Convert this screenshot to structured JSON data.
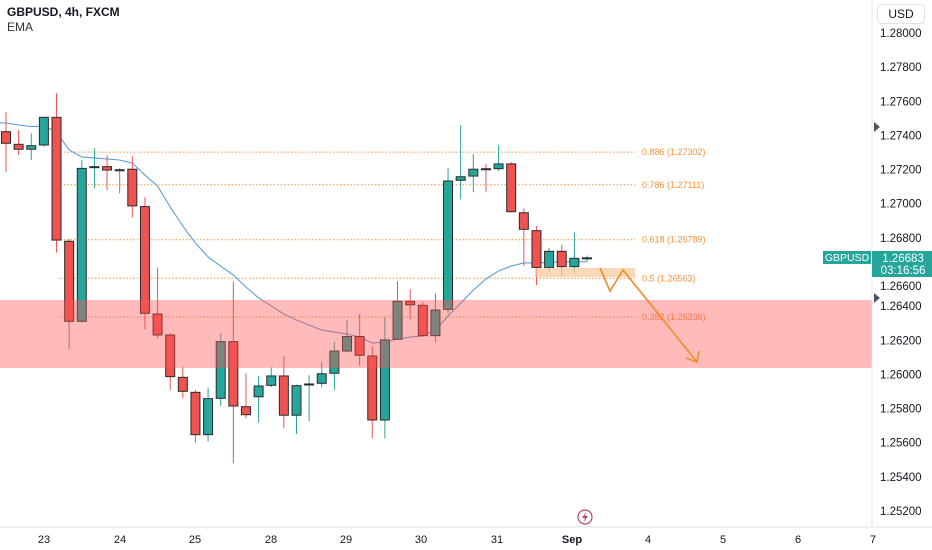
{
  "header": {
    "symbol": "GBPUSD, 4h, FXCM",
    "indicator": "EMA"
  },
  "currency_button": "USD",
  "colors": {
    "up": "#26a69a",
    "down": "#ef5350",
    "ema": "#5b9fd6",
    "fib": "#f7923a",
    "zone": "#ff5252",
    "projection": "#f08c28"
  },
  "chart_data": {
    "type": "candlestick",
    "symbol": "GBPUSD",
    "timeframe": "4h",
    "ylim": [
      1.251,
      1.2815
    ],
    "y_ticks": [
      "1.28000",
      "1.27800",
      "1.27600",
      "1.27400",
      "1.27200",
      "1.27000",
      "1.26800",
      "1.26600",
      "1.26400",
      "1.26200",
      "1.26000",
      "1.25800",
      "1.25600",
      "1.25400",
      "1.25200"
    ],
    "x_ticks": [
      "23",
      "24",
      "25",
      "28",
      "29",
      "30",
      "31",
      "Sep",
      "4",
      "5",
      "6",
      "7"
    ],
    "x_tick_bold": "Sep",
    "candles": [
      [
        1.27422,
        1.27537,
        1.27187,
        1.27354
      ],
      [
        1.27348,
        1.27432,
        1.27285,
        1.27319
      ],
      [
        1.27319,
        1.27412,
        1.27256,
        1.2734
      ],
      [
        1.27344,
        1.2751,
        1.27334,
        1.27506
      ],
      [
        1.27506,
        1.27647,
        1.26713,
        1.26787
      ],
      [
        1.2678,
        1.26792,
        1.26147,
        1.26311
      ],
      [
        1.26311,
        1.27256,
        1.26305,
        1.27207
      ],
      [
        1.27213,
        1.27325,
        1.2709,
        1.27217
      ],
      [
        1.27217,
        1.27285,
        1.2708,
        1.27197
      ],
      [
        1.27199,
        1.27209,
        1.27061,
        1.27197
      ],
      [
        1.27202,
        1.27279,
        1.2692,
        1.26987
      ],
      [
        1.26983,
        1.27038,
        1.26264,
        1.26358
      ],
      [
        1.26354,
        1.26627,
        1.26212,
        1.26231
      ],
      [
        1.26231,
        1.26241,
        1.25909,
        1.25987
      ],
      [
        1.25983,
        1.26045,
        1.2586,
        1.25901
      ],
      [
        1.25895,
        1.25909,
        1.256,
        1.25647
      ],
      [
        1.25647,
        1.25922,
        1.25606,
        1.25858
      ],
      [
        1.2586,
        1.26241,
        1.25815,
        1.26192
      ],
      [
        1.26192,
        1.26543,
        1.25479,
        1.25815
      ],
      [
        1.25811,
        1.26007,
        1.25743,
        1.25764
      ],
      [
        1.25869,
        1.25991,
        1.25717,
        1.25932
      ],
      [
        1.25936,
        1.26042,
        1.25925,
        1.25991
      ],
      [
        1.25991,
        1.26108,
        1.25684,
        1.25761
      ],
      [
        1.25761,
        1.2594,
        1.25651,
        1.25934
      ],
      [
        1.25942,
        1.25995,
        1.25727,
        1.25944
      ],
      [
        1.25948,
        1.26074,
        1.25925,
        1.26004
      ],
      [
        1.26007,
        1.2619,
        1.25909,
        1.26137
      ],
      [
        1.26137,
        1.26319,
        1.26133,
        1.26222
      ],
      [
        1.26222,
        1.26354,
        1.26049,
        1.26112
      ],
      [
        1.26108,
        1.26166,
        1.25626,
        1.25733
      ],
      [
        1.25733,
        1.26335,
        1.25626,
        1.26202
      ],
      [
        1.26206,
        1.26545,
        1.26202,
        1.26428
      ],
      [
        1.26428,
        1.26499,
        1.26323,
        1.26408
      ],
      [
        1.26405,
        1.26426,
        1.26227,
        1.26227
      ],
      [
        1.26227,
        1.26475,
        1.26188,
        1.26377
      ],
      [
        1.26381,
        1.27207,
        1.26358,
        1.27133
      ],
      [
        1.27137,
        1.27461,
        1.27026,
        1.27158
      ],
      [
        1.27162,
        1.27291,
        1.27067,
        1.27202
      ],
      [
        1.27205,
        1.27233,
        1.27067,
        1.27199
      ],
      [
        1.27205,
        1.27344,
        1.27192,
        1.27233
      ],
      [
        1.27233,
        1.27243,
        1.26953,
        1.26953
      ],
      [
        1.26947,
        1.26973,
        1.26635,
        1.2685
      ],
      [
        1.26842,
        1.26869,
        1.26524,
        1.26627
      ],
      [
        1.26627,
        1.26741,
        1.26602,
        1.26721
      ],
      [
        1.26721,
        1.26758,
        1.26582,
        1.26631
      ],
      [
        1.26631,
        1.26832,
        1.26592,
        1.2668
      ],
      [
        1.2668,
        1.26697,
        1.2666,
        1.26683
      ]
    ],
    "candle_format": [
      "open",
      "high",
      "low",
      "close"
    ],
    "ema": [
      1.27473,
      1.27461,
      1.27452,
      1.27455,
      1.2742,
      1.27315,
      1.27274,
      1.27268,
      1.27262,
      1.27256,
      1.27238,
      1.27168,
      1.27104,
      1.26981,
      1.26869,
      1.2677,
      1.26688,
      1.26635,
      1.26582,
      1.26512,
      1.26448,
      1.26401,
      1.26354,
      1.26319,
      1.26289,
      1.2626,
      1.26248,
      1.26237,
      1.26219,
      1.26184,
      1.2619,
      1.26207,
      1.26219,
      1.26225,
      1.2626,
      1.26342,
      1.26418,
      1.26494,
      1.26559,
      1.26606,
      1.26635,
      1.26653,
      1.26654,
      1.26656,
      1.26659,
      1.26659,
      1.2666
    ],
    "fib_levels": [
      {
        "label": "0.886 (1.27302)",
        "price": 1.27302
      },
      {
        "label": "0.786 (1.27111)",
        "price": 1.27111
      },
      {
        "label": "0.618 (1.26789)",
        "price": 1.26789
      },
      {
        "label": "0.5 (1.26563)",
        "price": 1.26563
      },
      {
        "label": "0.382 (1.26336)",
        "price": 1.26336
      }
    ],
    "supply_zone": {
      "top": 1.26436,
      "bottom": 1.26038
    },
    "last_price": {
      "symbol": "GBPUSD",
      "price": "1.26683",
      "countdown": "03:16:56"
    }
  }
}
